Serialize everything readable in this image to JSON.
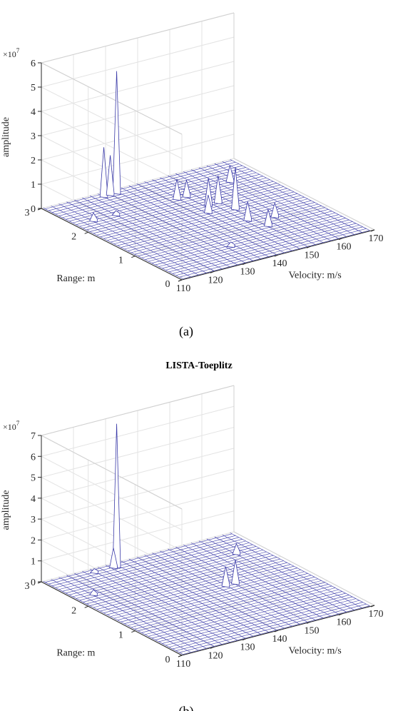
{
  "figures": [
    {
      "title": "",
      "caption": "(a)",
      "multiplier": "×10",
      "multiplier_exp": "7",
      "zlabel": "amplitude",
      "xlabel": "Velocity: m/s",
      "ylabel": "Range: m",
      "xticks": [
        "110",
        "120",
        "130",
        "140",
        "150",
        "160",
        "170"
      ],
      "yticks": [
        "0",
        "1",
        "2",
        "3"
      ],
      "zticks": [
        "0",
        "1",
        "2",
        "3",
        "4",
        "5",
        "6"
      ]
    },
    {
      "title": "LISTA-Toeplitz",
      "caption": "(b)",
      "multiplier": "×10",
      "multiplier_exp": "7",
      "zlabel": "amplitude",
      "xlabel": "Velocity: m/s",
      "ylabel": "Range: m",
      "xticks": [
        "110",
        "120",
        "130",
        "140",
        "150",
        "160",
        "170"
      ],
      "yticks": [
        "0",
        "1",
        "2",
        "3"
      ],
      "zticks": [
        "0",
        "1",
        "2",
        "3",
        "4",
        "5",
        "6",
        "7"
      ]
    }
  ],
  "chart_data": [
    {
      "type": "surface",
      "xlabel": "Velocity: m/s",
      "ylabel": "Range: m",
      "zlabel": "amplitude",
      "xlim": [
        110,
        170
      ],
      "ylim": [
        0,
        3
      ],
      "zlim": [
        0,
        60000000
      ],
      "z_multiplier": "×10^7",
      "mesh_color": "#3a3aa8",
      "peaks": [
        {
          "x": 132,
          "y": 2.9,
          "z": 50000000
        },
        {
          "x": 128,
          "y": 2.9,
          "z": 20000000
        },
        {
          "x": 130,
          "y": 2.9,
          "z": 16000000
        },
        {
          "x": 150,
          "y": 1.6,
          "z": 17000000
        },
        {
          "x": 146,
          "y": 1.9,
          "z": 11000000
        },
        {
          "x": 149,
          "y": 1.9,
          "z": 11000000
        },
        {
          "x": 142,
          "y": 2.3,
          "z": 8000000
        },
        {
          "x": 145,
          "y": 2.3,
          "z": 6500000
        },
        {
          "x": 143,
          "y": 1.7,
          "z": 7000000
        },
        {
          "x": 148,
          "y": 1.2,
          "z": 7500000
        },
        {
          "x": 150,
          "y": 0.9,
          "z": 6500000
        },
        {
          "x": 155,
          "y": 1.1,
          "z": 5500000
        },
        {
          "x": 160,
          "y": 2.4,
          "z": 6500000
        },
        {
          "x": 116,
          "y": 2.3,
          "z": 3000000
        },
        {
          "x": 123,
          "y": 2.3,
          "z": 1500000
        },
        {
          "x": 134,
          "y": 0.6,
          "z": 1500000
        }
      ]
    },
    {
      "type": "surface",
      "title": "LISTA-Toeplitz",
      "xlabel": "Velocity: m/s",
      "ylabel": "Range: m",
      "zlabel": "amplitude",
      "xlim": [
        110,
        170
      ],
      "ylim": [
        0,
        3
      ],
      "zlim": [
        0,
        70000000
      ],
      "z_multiplier": "×10^7",
      "mesh_color": "#3a3aa8",
      "peaks": [
        {
          "x": 132,
          "y": 2.9,
          "z": 68000000
        },
        {
          "x": 131,
          "y": 2.9,
          "z": 9000000
        },
        {
          "x": 125,
          "y": 2.9,
          "z": 1500000
        },
        {
          "x": 150,
          "y": 1.6,
          "z": 11000000
        },
        {
          "x": 147,
          "y": 1.6,
          "z": 9000000
        },
        {
          "x": 162,
          "y": 2.4,
          "z": 4500000
        },
        {
          "x": 116,
          "y": 2.3,
          "z": 2000000
        }
      ]
    }
  ]
}
